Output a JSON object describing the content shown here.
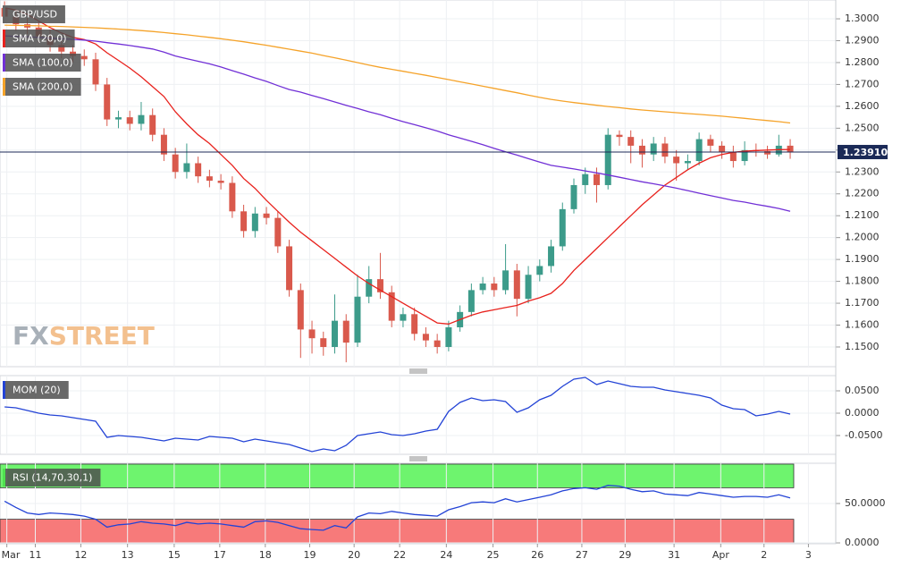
{
  "chart_data": [
    {
      "type": "candlestick",
      "name": "GBP/USD",
      "up_color": "#3c9b8a",
      "down_color": "#d9594c",
      "grid": true,
      "x": [
        0,
        1,
        2,
        3,
        4,
        5,
        6,
        7,
        8,
        9,
        10,
        11,
        12,
        13,
        14,
        15,
        16,
        17,
        18,
        19,
        20,
        21,
        22,
        23,
        24,
        25,
        26,
        27,
        28,
        29,
        30,
        31,
        32,
        33,
        34,
        35,
        36,
        37,
        38,
        39,
        40,
        41,
        42,
        43,
        44,
        45,
        46,
        47,
        48,
        49,
        50,
        51,
        52,
        53,
        54,
        55,
        56,
        57,
        58,
        59,
        60,
        61,
        62,
        63,
        64,
        65,
        66,
        67,
        68,
        69
      ],
      "open": [
        1.305,
        1.301,
        1.2975,
        1.296,
        1.292,
        1.288,
        1.285,
        1.283,
        1.2815,
        1.27,
        1.254,
        1.255,
        1.252,
        1.256,
        1.247,
        1.238,
        1.23,
        1.234,
        1.228,
        1.226,
        1.225,
        1.212,
        1.203,
        1.211,
        1.209,
        1.196,
        1.176,
        1.158,
        1.154,
        1.15,
        1.162,
        1.152,
        1.173,
        1.181,
        1.175,
        1.162,
        1.165,
        1.156,
        1.153,
        1.15,
        1.159,
        1.166,
        1.176,
        1.179,
        1.176,
        1.185,
        1.172,
        1.183,
        1.187,
        1.196,
        1.213,
        1.224,
        1.229,
        1.224,
        1.247,
        1.246,
        1.242,
        1.238,
        1.243,
        1.237,
        1.234,
        1.235,
        1.245,
        1.242,
        1.239,
        1.235,
        1.24,
        1.2395,
        1.238,
        1.242
      ],
      "high": [
        1.308,
        1.304,
        1.3005,
        1.299,
        1.295,
        1.291,
        1.288,
        1.286,
        1.2845,
        1.273,
        1.258,
        1.258,
        1.262,
        1.259,
        1.25,
        1.241,
        1.243,
        1.237,
        1.231,
        1.229,
        1.228,
        1.215,
        1.214,
        1.214,
        1.212,
        1.199,
        1.179,
        1.162,
        1.157,
        1.174,
        1.165,
        1.183,
        1.187,
        1.193,
        1.178,
        1.168,
        1.168,
        1.159,
        1.156,
        1.162,
        1.169,
        1.179,
        1.182,
        1.182,
        1.197,
        1.188,
        1.187,
        1.19,
        1.199,
        1.216,
        1.227,
        1.232,
        1.232,
        1.25,
        1.249,
        1.249,
        1.245,
        1.246,
        1.246,
        1.24,
        1.238,
        1.248,
        1.247,
        1.244,
        1.242,
        1.244,
        1.243,
        1.242,
        1.247,
        1.245
      ],
      "low": [
        1.298,
        1.2945,
        1.293,
        1.289,
        1.285,
        1.282,
        1.28,
        1.2785,
        1.267,
        1.251,
        1.25,
        1.249,
        1.249,
        1.244,
        1.235,
        1.227,
        1.227,
        1.225,
        1.223,
        1.222,
        1.209,
        1.2,
        1.2,
        1.206,
        1.193,
        1.173,
        1.145,
        1.147,
        1.146,
        1.147,
        1.143,
        1.15,
        1.17,
        1.172,
        1.159,
        1.159,
        1.153,
        1.15,
        1.147,
        1.148,
        1.157,
        1.164,
        1.174,
        1.173,
        1.174,
        1.164,
        1.17,
        1.18,
        1.184,
        1.194,
        1.211,
        1.22,
        1.216,
        1.222,
        1.242,
        1.234,
        1.232,
        1.235,
        1.234,
        1.226,
        1.231,
        1.233,
        1.239,
        1.236,
        1.232,
        1.233,
        1.237,
        1.236,
        1.237,
        1.236
      ],
      "close": [
        1.301,
        1.2975,
        1.296,
        1.292,
        1.288,
        1.285,
        1.283,
        1.2815,
        1.27,
        1.254,
        1.255,
        1.252,
        1.256,
        1.247,
        1.238,
        1.23,
        1.234,
        1.228,
        1.226,
        1.225,
        1.212,
        1.203,
        1.211,
        1.209,
        1.196,
        1.176,
        1.158,
        1.154,
        1.15,
        1.162,
        1.152,
        1.173,
        1.181,
        1.175,
        1.162,
        1.165,
        1.156,
        1.153,
        1.15,
        1.159,
        1.166,
        1.176,
        1.179,
        1.176,
        1.185,
        1.172,
        1.183,
        1.187,
        1.196,
        1.213,
        1.224,
        1.229,
        1.224,
        1.247,
        1.246,
        1.242,
        1.238,
        1.243,
        1.237,
        1.234,
        1.235,
        1.245,
        1.242,
        1.239,
        1.235,
        1.24,
        1.2395,
        1.238,
        1.242,
        1.2391
      ],
      "series": [
        {
          "name": "SMA (20,0)",
          "color": "#e8221d",
          "values": [
            1.305,
            1.304,
            1.302,
            1.299,
            1.296,
            1.2935,
            1.2915,
            1.2905,
            1.2885,
            1.2845,
            1.281,
            1.2775,
            1.2735,
            1.269,
            1.2645,
            1.2575,
            1.252,
            1.247,
            1.243,
            1.238,
            1.233,
            1.227,
            1.2225,
            1.217,
            1.212,
            1.207,
            1.2025,
            1.1985,
            1.1945,
            1.1905,
            1.1865,
            1.1825,
            1.179,
            1.176,
            1.173,
            1.17,
            1.167,
            1.164,
            1.161,
            1.1605,
            1.1625,
            1.1645,
            1.166,
            1.167,
            1.168,
            1.169,
            1.171,
            1.1725,
            1.1745,
            1.179,
            1.185,
            1.19,
            1.195,
            1.2,
            1.205,
            1.21,
            1.215,
            1.2195,
            1.224,
            1.2275,
            1.231,
            1.234,
            1.2365,
            1.238,
            1.239,
            1.2395,
            1.2398,
            1.24,
            1.2402,
            1.2403
          ]
        },
        {
          "name": "SMA (100,0)",
          "color": "#7130d6",
          "values": [
            1.2922,
            1.292,
            1.2918,
            1.2915,
            1.2912,
            1.2909,
            1.2906,
            1.2903,
            1.2898,
            1.2891,
            1.2885,
            1.2878,
            1.287,
            1.2862,
            1.2848,
            1.283,
            1.2818,
            1.2806,
            1.2794,
            1.278,
            1.2763,
            1.2747,
            1.273,
            1.2714,
            1.2695,
            1.2677,
            1.2665,
            1.265,
            1.2635,
            1.262,
            1.2605,
            1.259,
            1.2575,
            1.2562,
            1.2545,
            1.253,
            1.2516,
            1.2502,
            1.2487,
            1.247,
            1.2455,
            1.244,
            1.2425,
            1.2408,
            1.2392,
            1.2377,
            1.2361,
            1.2345,
            1.233,
            1.2322,
            1.2314,
            1.2305,
            1.2296,
            1.2286,
            1.2276,
            1.2265,
            1.2255,
            1.2246,
            1.2236,
            1.2226,
            1.2215,
            1.2203,
            1.2192,
            1.2181,
            1.217,
            1.2162,
            1.2152,
            1.2143,
            1.2133,
            1.212
          ]
        },
        {
          "name": "SMA (200,0)",
          "color": "#f5a32a",
          "values": [
            1.2971,
            1.297,
            1.2969,
            1.2968,
            1.2966,
            1.2965,
            1.2963,
            1.2961,
            1.2959,
            1.2956,
            1.2953,
            1.295,
            1.2946,
            1.2942,
            1.2937,
            1.2932,
            1.2927,
            1.2921,
            1.2915,
            1.2909,
            1.2902,
            1.2895,
            1.2887,
            1.2879,
            1.287,
            1.2861,
            1.2852,
            1.2843,
            1.2832,
            1.2822,
            1.2811,
            1.28,
            1.2789,
            1.2778,
            1.2769,
            1.276,
            1.2751,
            1.2742,
            1.2732,
            1.2722,
            1.2712,
            1.2702,
            1.2692,
            1.2682,
            1.2672,
            1.2662,
            1.2651,
            1.2641,
            1.2632,
            1.2624,
            1.2617,
            1.2611,
            1.2605,
            1.2599,
            1.2594,
            1.2588,
            1.2583,
            1.2579,
            1.2575,
            1.2571,
            1.2567,
            1.2563,
            1.2559,
            1.2555,
            1.255,
            1.2545,
            1.254,
            1.2535,
            1.253,
            1.2524
          ]
        }
      ],
      "xlim": [
        -0.4,
        73
      ],
      "xticks": [
        {
          "value": 0.2,
          "label": "Mar"
        },
        {
          "value": 2.7,
          "label": "11"
        },
        {
          "value": 6.7,
          "label": "12"
        },
        {
          "value": 10.8,
          "label": "13"
        },
        {
          "value": 14.9,
          "label": "15"
        },
        {
          "value": 18.9,
          "label": "17"
        },
        {
          "value": 22.9,
          "label": "18"
        },
        {
          "value": 26.8,
          "label": "19"
        },
        {
          "value": 30.7,
          "label": "20"
        },
        {
          "value": 34.7,
          "label": "22"
        },
        {
          "value": 38.8,
          "label": "24"
        },
        {
          "value": 42.9,
          "label": "25"
        },
        {
          "value": 46.8,
          "label": "26"
        },
        {
          "value": 50.7,
          "label": "27"
        },
        {
          "value": 54.5,
          "label": "29"
        },
        {
          "value": 58.8,
          "label": "31"
        },
        {
          "value": 62.9,
          "label": "Apr"
        },
        {
          "value": 66.7,
          "label": "2"
        },
        {
          "value": 70.6,
          "label": "3"
        }
      ],
      "ylim": [
        1.141,
        1.3086
      ],
      "yticks": [
        {
          "value": 1.15,
          "label": "1.1500"
        },
        {
          "value": 1.16,
          "label": "1.1600"
        },
        {
          "value": 1.17,
          "label": "1.1700"
        },
        {
          "value": 1.18,
          "label": "1.1800"
        },
        {
          "value": 1.19,
          "label": "1.1900"
        },
        {
          "value": 1.2,
          "label": "1.2000"
        },
        {
          "value": 1.21,
          "label": "1.2100"
        },
        {
          "value": 1.22,
          "label": "1.2200"
        },
        {
          "value": 1.23,
          "label": "1.2300"
        },
        {
          "value": 1.24,
          "label": "1.2400"
        },
        {
          "value": 1.25,
          "label": "1.2500"
        },
        {
          "value": 1.26,
          "label": "1.2600"
        },
        {
          "value": 1.27,
          "label": "1.2700"
        },
        {
          "value": 1.28,
          "label": "1.2800"
        },
        {
          "value": 1.29,
          "label": "1.2900"
        },
        {
          "value": 1.3,
          "label": "1.3000"
        }
      ],
      "price_line": {
        "value": 1.2391,
        "label": "1.23910",
        "color": "#1b2a57"
      }
    },
    {
      "type": "line",
      "grid": true,
      "x": [
        0,
        1,
        2,
        3,
        4,
        5,
        6,
        7,
        8,
        9,
        10,
        11,
        12,
        13,
        14,
        15,
        16,
        17,
        18,
        19,
        20,
        21,
        22,
        23,
        24,
        25,
        26,
        27,
        28,
        29,
        30,
        31,
        32,
        33,
        34,
        35,
        36,
        37,
        38,
        39,
        40,
        41,
        42,
        43,
        44,
        45,
        46,
        47,
        48,
        49,
        50,
        51,
        52,
        53,
        54,
        55,
        56,
        57,
        58,
        59,
        60,
        61,
        62,
        63,
        64,
        65,
        66,
        67,
        68,
        69
      ],
      "series": [
        {
          "name": "MOM (20)",
          "color": "#2343d6",
          "values": [
            0.014,
            0.012,
            0.006,
            0.0,
            -0.004,
            -0.006,
            -0.01,
            -0.014,
            -0.018,
            -0.054,
            -0.05,
            -0.052,
            -0.054,
            -0.058,
            -0.062,
            -0.056,
            -0.058,
            -0.06,
            -0.052,
            -0.054,
            -0.056,
            -0.064,
            -0.058,
            -0.062,
            -0.066,
            -0.07,
            -0.078,
            -0.086,
            -0.08,
            -0.084,
            -0.072,
            -0.05,
            -0.046,
            -0.042,
            -0.048,
            -0.05,
            -0.046,
            -0.04,
            -0.036,
            0.004,
            0.024,
            0.034,
            0.028,
            0.03,
            0.026,
            0.002,
            0.012,
            0.03,
            0.04,
            0.06,
            0.076,
            0.08,
            0.064,
            0.072,
            0.066,
            0.06,
            0.058,
            0.058,
            0.052,
            0.048,
            0.044,
            0.04,
            0.034,
            0.018,
            0.01,
            0.008,
            -0.006,
            -0.002,
            0.004,
            -0.002
          ]
        }
      ],
      "ylim": [
        -0.092,
        0.084
      ],
      "yticks": [
        {
          "value": 0.05,
          "label": "0.0500"
        },
        {
          "value": 0,
          "label": "0.0000"
        },
        {
          "value": -0.05,
          "label": "-0.0500"
        }
      ]
    },
    {
      "type": "line",
      "grid": true,
      "x": [
        0,
        1,
        2,
        3,
        4,
        5,
        6,
        7,
        8,
        9,
        10,
        11,
        12,
        13,
        14,
        15,
        16,
        17,
        18,
        19,
        20,
        21,
        22,
        23,
        24,
        25,
        26,
        27,
        28,
        29,
        30,
        31,
        32,
        33,
        34,
        35,
        36,
        37,
        38,
        39,
        40,
        41,
        42,
        43,
        44,
        45,
        46,
        47,
        48,
        49,
        50,
        51,
        52,
        53,
        54,
        55,
        56,
        57,
        58,
        59,
        60,
        61,
        62,
        63,
        64,
        65,
        66,
        67,
        68,
        69
      ],
      "series": [
        {
          "name": "RSI (14,70,30,1)",
          "color": "#2343d6",
          "values": [
            53,
            45,
            38,
            36,
            38,
            37,
            36,
            34,
            30,
            20,
            23,
            24,
            27,
            25,
            24,
            22,
            26,
            24,
            25,
            24,
            22,
            20,
            27,
            28,
            26,
            22,
            18,
            17,
            16,
            22,
            19,
            33,
            38,
            37,
            40,
            38,
            36,
            35,
            34,
            42,
            46,
            51,
            52,
            51,
            56,
            52,
            55,
            58,
            61,
            66,
            69,
            70,
            68,
            73,
            72,
            68,
            65,
            66,
            62,
            61,
            60,
            64,
            62,
            60,
            58,
            59,
            59,
            58,
            61,
            57
          ]
        }
      ],
      "ylim": [
        -1.1,
        101.1
      ],
      "yticks": [
        {
          "value": 0,
          "label": "0.0000"
        },
        {
          "value": 50,
          "label": "50.0000"
        }
      ],
      "bands": [
        {
          "from": 70,
          "to": 100,
          "color": "#6ef46e"
        },
        {
          "from": 0,
          "to": 30,
          "color": "#f77a7a"
        }
      ]
    }
  ],
  "watermark": [
    "FX",
    "STREET"
  ]
}
